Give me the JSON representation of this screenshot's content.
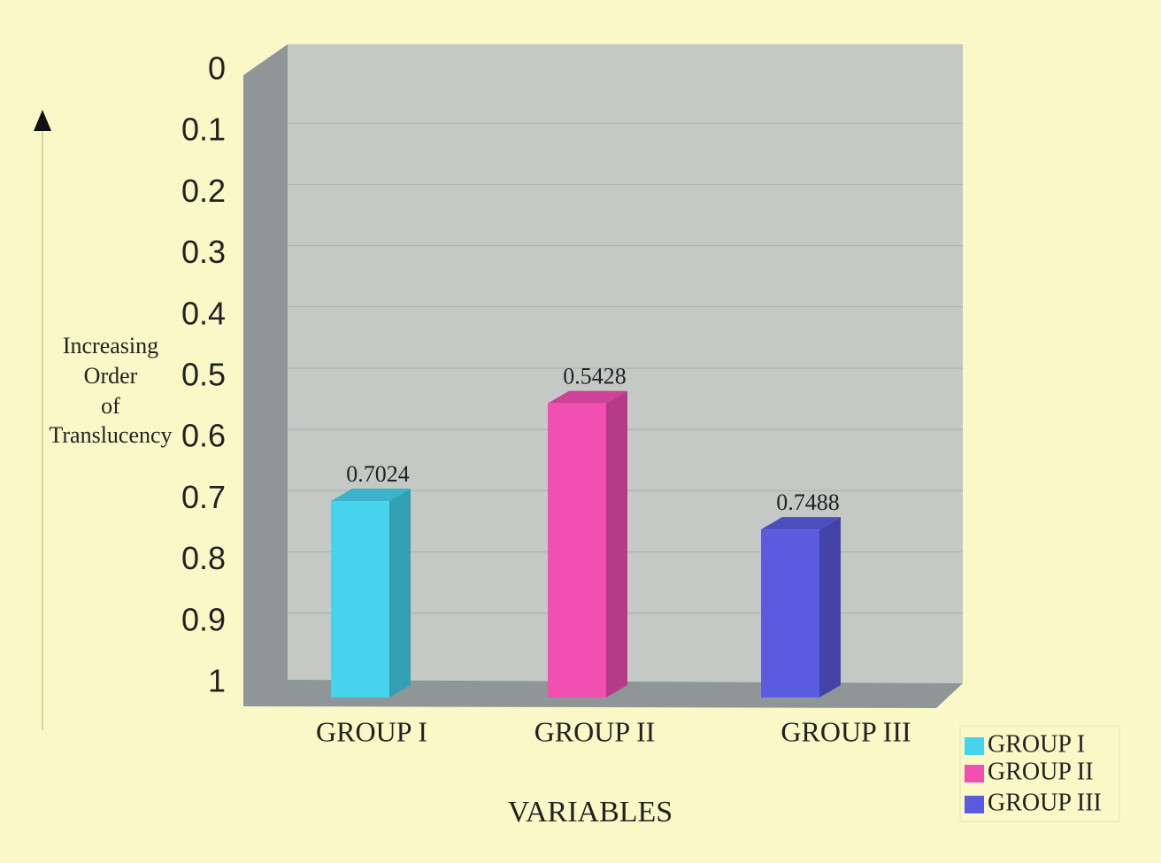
{
  "chart_data": {
    "type": "bar3d",
    "y_label": [
      "Increasing",
      "Order",
      "of",
      "Translucency"
    ],
    "x_label": "VARIABLES",
    "categories": [
      "GROUP I",
      "GROUP II",
      "GROUP III"
    ],
    "values": [
      0.7024,
      0.5428,
      0.7488
    ],
    "colors": [
      "#45d3ee",
      "#f24fb2",
      "#5b5be0"
    ],
    "ylim": [
      0,
      1
    ],
    "y_inverted": true,
    "yticks": [
      0,
      0.1,
      0.2,
      0.3,
      0.4,
      0.5,
      0.6,
      0.7,
      0.8,
      0.9,
      1
    ],
    "grid": true,
    "legend": "bottom-right"
  }
}
